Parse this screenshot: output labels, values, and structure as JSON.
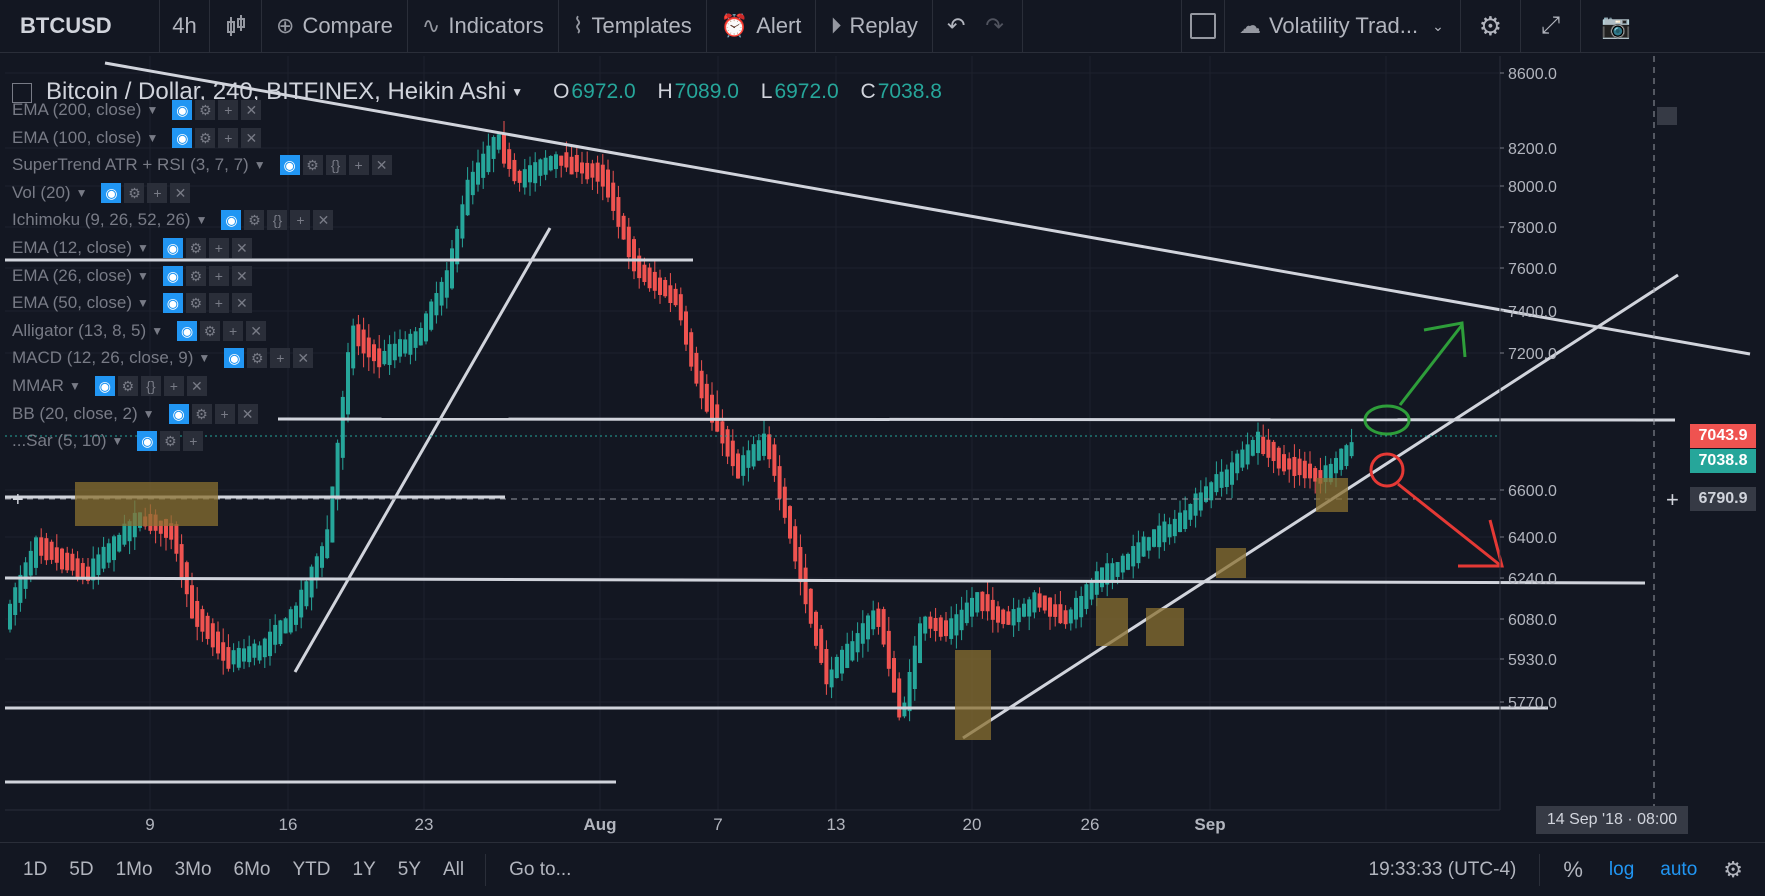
{
  "toolbar": {
    "symbol": "BTCUSD",
    "interval": "4h",
    "compare": "Compare",
    "indicators": "Indicators",
    "templates": "Templates",
    "alert": "Alert",
    "replay": "Replay",
    "layout_name": "Volatility Trad..."
  },
  "legend": {
    "title": "Bitcoin / Dollar, 240, BITFINEX, Heikin Ashi",
    "o_label": "O",
    "o": "6972.0",
    "h_label": "H",
    "h": "7089.0",
    "l_label": "L",
    "l": "6972.0",
    "c_label": "C",
    "c": "7038.8"
  },
  "indicators": [
    "EMA (200, close)",
    "EMA (100, close)",
    "SuperTrend ATR + RSI (3, 7, 7)",
    "Vol (20)",
    "Ichimoku (9, 26, 52, 26)",
    "EMA (12, close)",
    "EMA (26, close)",
    "EMA (50, close)",
    "Alligator (13, 8, 5)",
    "MACD (12, 26, close, 9)",
    "MMAR",
    "BB (20, close, 2)",
    "...Sar (5, 10)"
  ],
  "price_axis": [
    "8600.0",
    "8200.0",
    "8000.0",
    "7800.0",
    "7600.0",
    "7400.0",
    "7200.0",
    "6600.0",
    "6400.0",
    "6240.0",
    "6080.0",
    "5930.0",
    "5770.0"
  ],
  "price_labels": {
    "current": "7043.9",
    "close": "7038.8",
    "crosshair": "6790.9",
    "current_color": "#ef5350",
    "close_color": "#26a69a"
  },
  "time_axis": [
    "9",
    "16",
    "23",
    "Aug",
    "7",
    "13",
    "20",
    "26",
    "Sep"
  ],
  "crosshair_time": "14 Sep '18 · 08:00",
  "bottom": {
    "ranges": [
      "1D",
      "5D",
      "1Mo",
      "3Mo",
      "6Mo",
      "YTD",
      "1Y",
      "5Y",
      "All"
    ],
    "goto": "Go to...",
    "clock": "19:33:33 (UTC-4)",
    "percent": "%",
    "log": "log",
    "auto": "auto"
  },
  "colors": {
    "bg": "#131722",
    "up": "#26a69a",
    "down": "#ef5350",
    "line": "#c8d0e8",
    "box": "#8a7030"
  }
}
